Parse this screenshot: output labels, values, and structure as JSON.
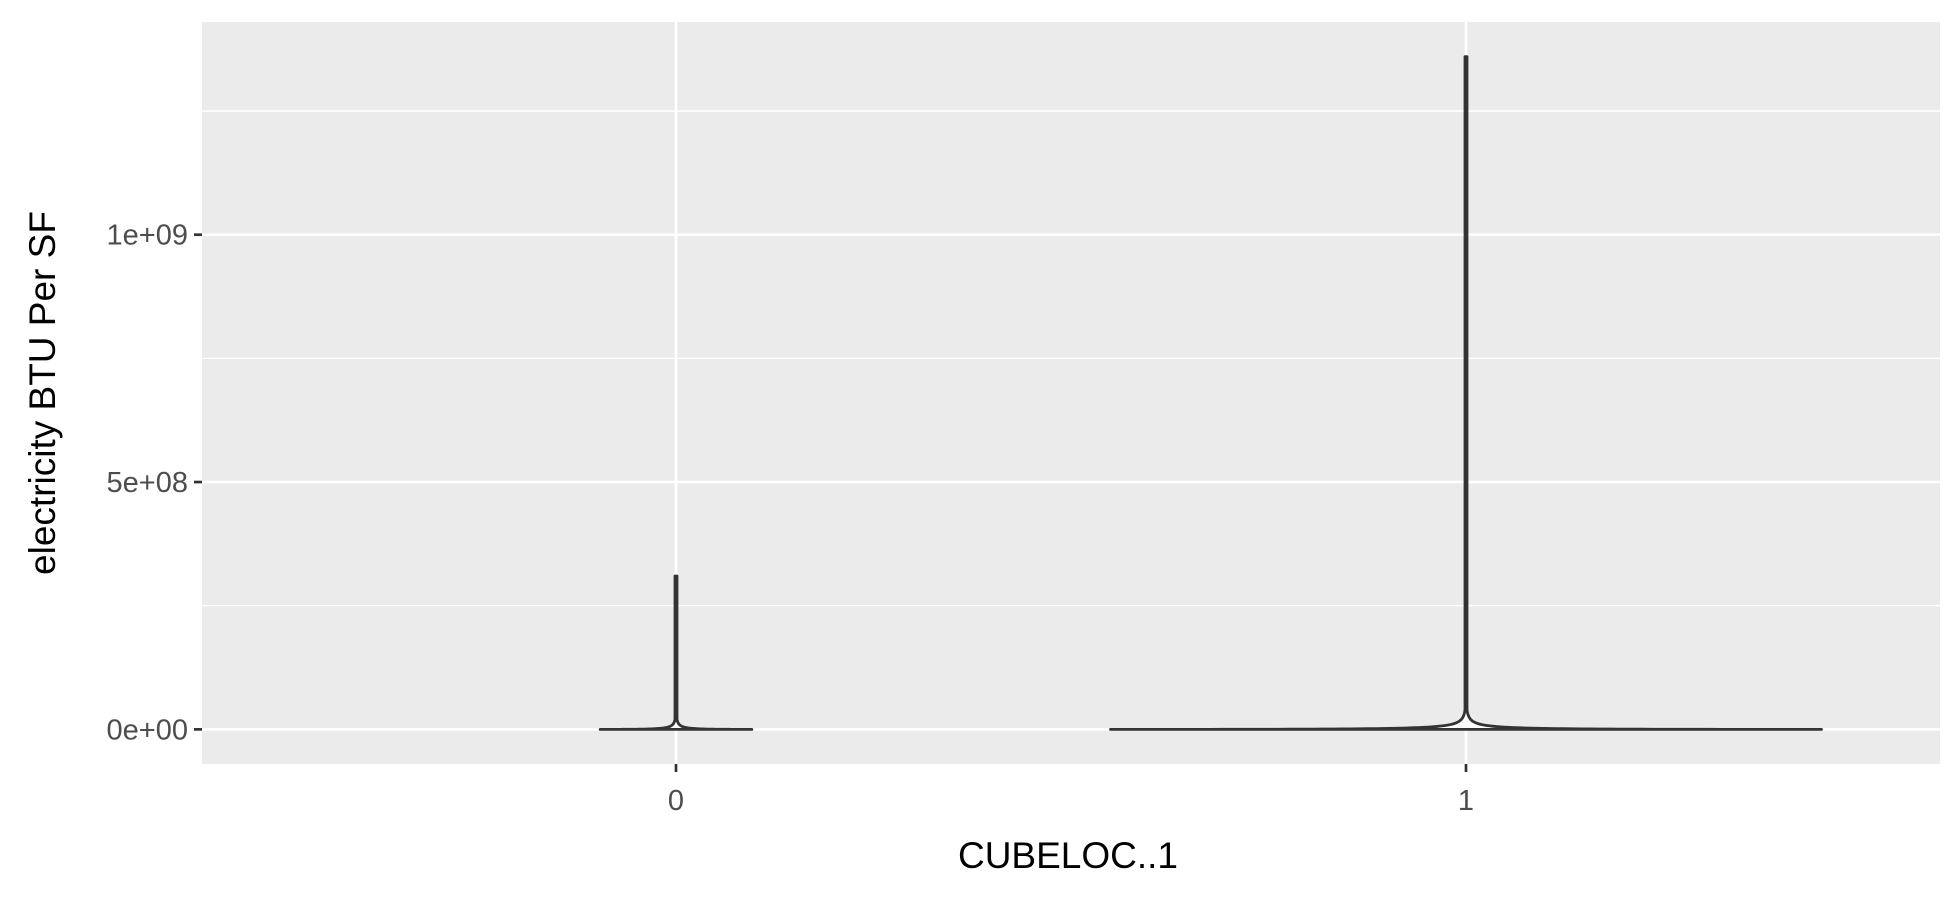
{
  "chart_data": {
    "type": "violin",
    "title": "",
    "xlabel": "CUBELOC..1",
    "ylabel": "electricity BTU Per SF",
    "categories": [
      "0",
      "1"
    ],
    "ylim": [
      -70000000,
      1430000000
    ],
    "yticks": [
      0,
      500000000,
      1000000000
    ],
    "yticklabels": [
      "0e+00",
      "5e+08",
      "1e+09"
    ],
    "grid": true,
    "legend": "none",
    "series": [
      {
        "category": "0",
        "max": 310000000,
        "min": 0,
        "max_half_width": 0.096
      },
      {
        "category": "1",
        "max": 1360000000,
        "min": 0,
        "max_half_width": 0.45
      }
    ],
    "colors": {
      "panel_background": "#ebebeb",
      "grid_major": "#ffffff",
      "violin_outline": "#333333",
      "violin_fill": "#ffffff"
    }
  }
}
